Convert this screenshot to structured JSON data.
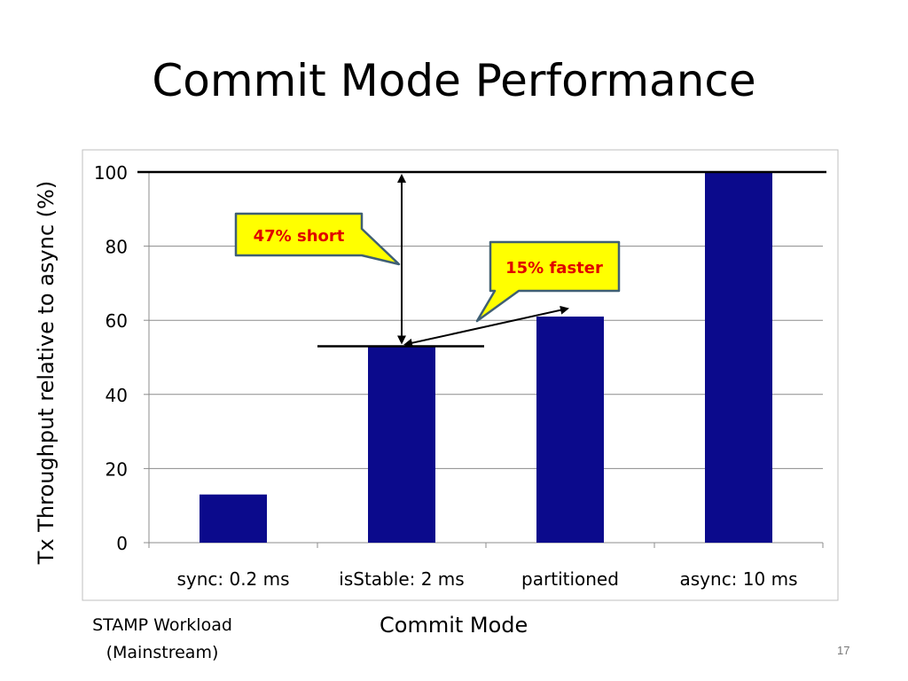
{
  "slide": {
    "title": "Commit Mode Performance",
    "workload_line1": "STAMP Workload",
    "workload_line2": "(Mainstream)",
    "page_number": "17"
  },
  "colors": {
    "bar": "#0b0a8c",
    "callout_fill": "#ffff00",
    "callout_border": "#3f5f74",
    "callout_text": "#e00000"
  },
  "chart_data": {
    "type": "bar",
    "categories": [
      "sync: 0.2 ms",
      "isStable: 2 ms",
      "partitioned",
      "async: 10 ms"
    ],
    "values": [
      13,
      53,
      61,
      100
    ],
    "xlabel": "Commit Mode",
    "ylabel": "Tx Throughput relative to async (%)",
    "ylim": [
      0,
      100
    ],
    "yticks": [
      0,
      20,
      40,
      60,
      80,
      100
    ],
    "grid": true,
    "reference_lines": [
      100,
      53
    ],
    "annotations": [
      {
        "text": "47% short",
        "from_value": 53,
        "to_value": 100
      },
      {
        "text": "15% faster",
        "from_value": 53,
        "to_value": 61
      }
    ]
  }
}
